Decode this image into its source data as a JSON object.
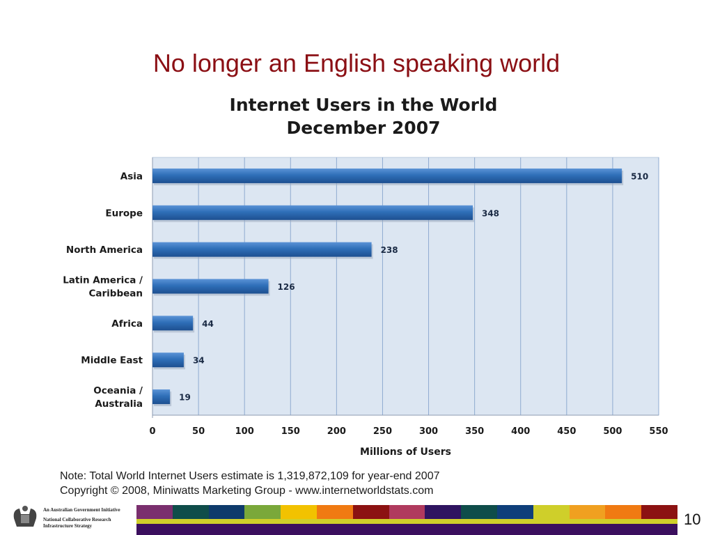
{
  "slide": {
    "title": "No longer an English speaking world",
    "page_number": "10"
  },
  "note": {
    "line1": "Note: Total World Internet Users estimate is 1,319,872,109 for year-end 2007",
    "line2": "Copyright © 2008, Miniwatts Marketing Group - www.internetworldstats.com"
  },
  "footer": {
    "logo_line1": "An Australian Government Initiative",
    "logo_line2": "National Collaborative Research",
    "logo_line3": "Infrastructure Strategy",
    "strip_colors": [
      "#7a2f6e",
      "#0f4d4a",
      "#0e3a6b",
      "#7aa83a",
      "#f2c200",
      "#f07a12",
      "#8c1212",
      "#b03a5e",
      "#2f1460",
      "#0f4d4a",
      "#0f3f7a",
      "#cfcf2a",
      "#f0a020",
      "#f07a12",
      "#8c1212"
    ]
  },
  "chart_data": {
    "type": "bar",
    "orientation": "horizontal",
    "title": "Internet Users in the World",
    "subtitle": "December 2007",
    "xlabel": "Millions of Users",
    "ylabel": "",
    "categories": [
      [
        "Asia"
      ],
      [
        "Europe"
      ],
      [
        "North America"
      ],
      [
        "Latin America /",
        "Caribbean"
      ],
      [
        "Africa"
      ],
      [
        "Middle East"
      ],
      [
        "Oceania  /",
        "Australia"
      ]
    ],
    "values": [
      510,
      348,
      238,
      126,
      44,
      34,
      19
    ],
    "xlim": [
      0,
      550
    ],
    "xticks": [
      0,
      50,
      100,
      150,
      200,
      250,
      300,
      350,
      400,
      450,
      500,
      550
    ],
    "grid": true,
    "colors": {
      "plot_background": "#dce6f2",
      "bar": "#2f6fb8",
      "grid": "#8eaad0"
    }
  }
}
